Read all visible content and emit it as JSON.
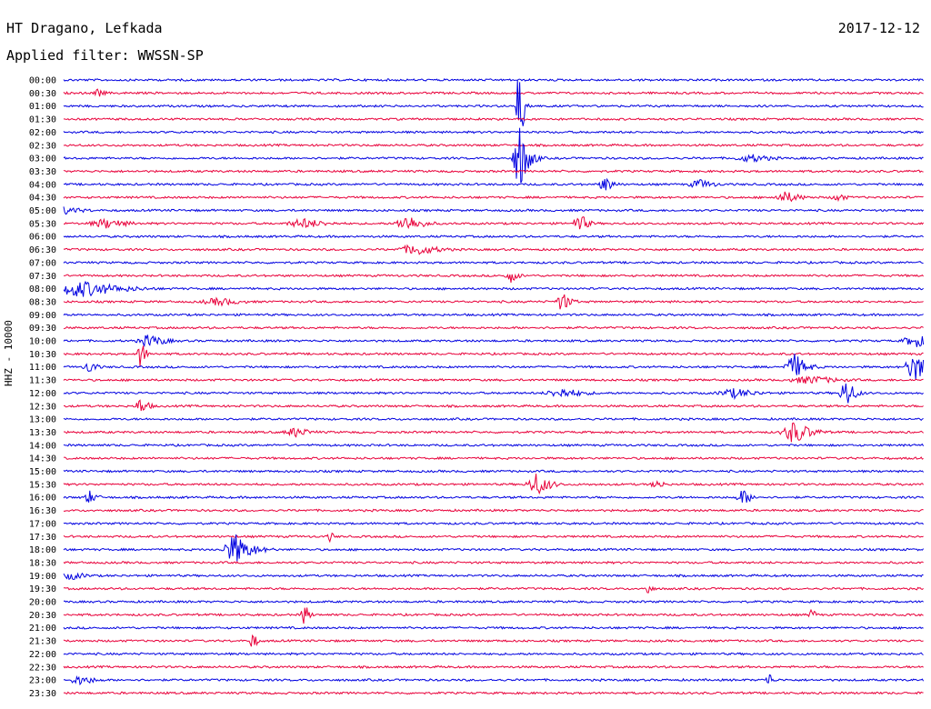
{
  "header": {
    "station": "HT Dragano, Lefkada",
    "filter": "Applied filter: WWSSN-SP",
    "date": "2017-12-12",
    "channel": "HHZ - 10000"
  },
  "chart_data": {
    "type": "line",
    "title": "HT Dragano, Lefkada",
    "subtitle": "Applied filter: WWSSN-SP",
    "ylabel": "HHZ - 10000",
    "xlabel": "",
    "grid": false,
    "legend": "none",
    "time_window_minutes": 30,
    "colors": {
      "odd": "#0000e0",
      "even": "#e8003a"
    },
    "rows": [
      "00:00",
      "00:30",
      "01:00",
      "01:30",
      "02:00",
      "02:30",
      "03:00",
      "03:30",
      "04:00",
      "04:30",
      "05:00",
      "05:30",
      "06:00",
      "06:30",
      "07:00",
      "07:30",
      "08:00",
      "08:30",
      "09:00",
      "09:30",
      "10:00",
      "10:30",
      "11:00",
      "11:30",
      "12:00",
      "12:30",
      "13:00",
      "13:30",
      "14:00",
      "14:30",
      "15:00",
      "15:30",
      "16:00",
      "16:30",
      "17:00",
      "17:30",
      "18:00",
      "18:30",
      "19:00",
      "19:30",
      "20:00",
      "20:30",
      "21:00",
      "21:30",
      "22:00",
      "22:30",
      "23:00",
      "23:30"
    ],
    "events": [
      {
        "row": 1,
        "x": 0.04,
        "amp": 5,
        "width": 0.01
      },
      {
        "row": 2,
        "x": 0.53,
        "amp": 60,
        "width": 0.005,
        "spike": true
      },
      {
        "row": 6,
        "x": 0.53,
        "amp": 40,
        "width": 0.01
      },
      {
        "row": 6,
        "x": 0.8,
        "amp": 5,
        "width": 0.03
      },
      {
        "row": 8,
        "x": 0.63,
        "amp": 10,
        "width": 0.01
      },
      {
        "row": 8,
        "x": 0.74,
        "amp": 6,
        "width": 0.02
      },
      {
        "row": 9,
        "x": 0.84,
        "amp": 7,
        "width": 0.02
      },
      {
        "row": 9,
        "x": 0.9,
        "amp": 6,
        "width": 0.01
      },
      {
        "row": 10,
        "x": 0.0,
        "amp": 5,
        "width": 0.03
      },
      {
        "row": 11,
        "x": 0.05,
        "amp": 6,
        "width": 0.03
      },
      {
        "row": 11,
        "x": 0.28,
        "amp": 6,
        "width": 0.03
      },
      {
        "row": 11,
        "x": 0.4,
        "amp": 10,
        "width": 0.02
      },
      {
        "row": 11,
        "x": 0.6,
        "amp": 12,
        "width": 0.01
      },
      {
        "row": 13,
        "x": 0.41,
        "amp": 7,
        "width": 0.03
      },
      {
        "row": 15,
        "x": 0.52,
        "amp": 8,
        "width": 0.01
      },
      {
        "row": 16,
        "x": 0.02,
        "amp": 10,
        "width": 0.05
      },
      {
        "row": 17,
        "x": 0.18,
        "amp": 5,
        "width": 0.03
      },
      {
        "row": 17,
        "x": 0.58,
        "amp": 12,
        "width": 0.01
      },
      {
        "row": 20,
        "x": 0.1,
        "amp": 8,
        "width": 0.02
      },
      {
        "row": 20,
        "x": 0.99,
        "amp": 8,
        "width": 0.02
      },
      {
        "row": 21,
        "x": 0.09,
        "amp": 20,
        "width": 0.005,
        "spike": true
      },
      {
        "row": 22,
        "x": 0.03,
        "amp": 8,
        "width": 0.01
      },
      {
        "row": 22,
        "x": 0.85,
        "amp": 15,
        "width": 0.015
      },
      {
        "row": 22,
        "x": 0.99,
        "amp": 18,
        "width": 0.015
      },
      {
        "row": 23,
        "x": 0.87,
        "amp": 5,
        "width": 0.04
      },
      {
        "row": 24,
        "x": 0.58,
        "amp": 6,
        "width": 0.03
      },
      {
        "row": 24,
        "x": 0.78,
        "amp": 6,
        "width": 0.03
      },
      {
        "row": 24,
        "x": 0.91,
        "amp": 18,
        "width": 0.01,
        "spike": true
      },
      {
        "row": 25,
        "x": 0.09,
        "amp": 10,
        "width": 0.01
      },
      {
        "row": 27,
        "x": 0.27,
        "amp": 6,
        "width": 0.02
      },
      {
        "row": 27,
        "x": 0.85,
        "amp": 14,
        "width": 0.02
      },
      {
        "row": 31,
        "x": 0.55,
        "amp": 14,
        "width": 0.015
      },
      {
        "row": 31,
        "x": 0.69,
        "amp": 6,
        "width": 0.01
      },
      {
        "row": 32,
        "x": 0.03,
        "amp": 8,
        "width": 0.01
      },
      {
        "row": 32,
        "x": 0.79,
        "amp": 10,
        "width": 0.01
      },
      {
        "row": 35,
        "x": 0.31,
        "amp": 7,
        "width": 0.005
      },
      {
        "row": 36,
        "x": 0.2,
        "amp": 18,
        "width": 0.02
      },
      {
        "row": 38,
        "x": 0.01,
        "amp": 5,
        "width": 0.02
      },
      {
        "row": 39,
        "x": 0.68,
        "amp": 8,
        "width": 0.005
      },
      {
        "row": 41,
        "x": 0.28,
        "amp": 16,
        "width": 0.005
      },
      {
        "row": 41,
        "x": 0.87,
        "amp": 8,
        "width": 0.005
      },
      {
        "row": 43,
        "x": 0.22,
        "amp": 12,
        "width": 0.005
      },
      {
        "row": 46,
        "x": 0.02,
        "amp": 6,
        "width": 0.02
      },
      {
        "row": 46,
        "x": 0.82,
        "amp": 10,
        "width": 0.005
      }
    ]
  }
}
